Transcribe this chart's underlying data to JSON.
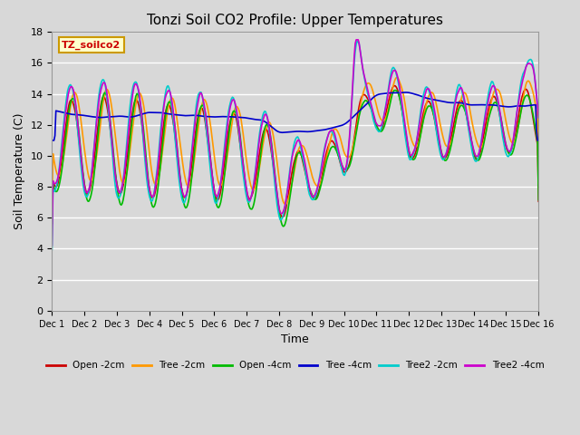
{
  "title": "Tonzi Soil CO2 Profile: Upper Temperatures",
  "xlabel": "Time",
  "ylabel": "Soil Temperature (C)",
  "annotation": "TZ_soilco2",
  "ylim": [
    0,
    18
  ],
  "yticks": [
    0,
    2,
    4,
    6,
    8,
    10,
    12,
    14,
    16,
    18
  ],
  "xlim": [
    0,
    15
  ],
  "xtick_labels": [
    "Dec 1",
    "Dec 2",
    "Dec 3",
    "Dec 4",
    "Dec 5",
    "Dec 6",
    "Dec 7",
    "Dec 8",
    "Dec 9",
    "Dec 10",
    "Dec 11",
    "Dec 12",
    "Dec 13",
    "Dec 14",
    "Dec 15",
    "Dec 16"
  ],
  "background_color": "#d8d8d8",
  "plot_bg_color": "#d8d8d8",
  "grid_color": "#ffffff",
  "series": {
    "Open -2cm": {
      "color": "#cc0000",
      "lw": 1.2
    },
    "Tree -2cm": {
      "color": "#ff9900",
      "lw": 1.2
    },
    "Open -4cm": {
      "color": "#00bb00",
      "lw": 1.2
    },
    "Tree -4cm": {
      "color": "#0000cc",
      "lw": 1.2
    },
    "Tree2 -2cm": {
      "color": "#00cccc",
      "lw": 1.2
    },
    "Tree2 -4cm": {
      "color": "#cc00cc",
      "lw": 1.2
    }
  }
}
